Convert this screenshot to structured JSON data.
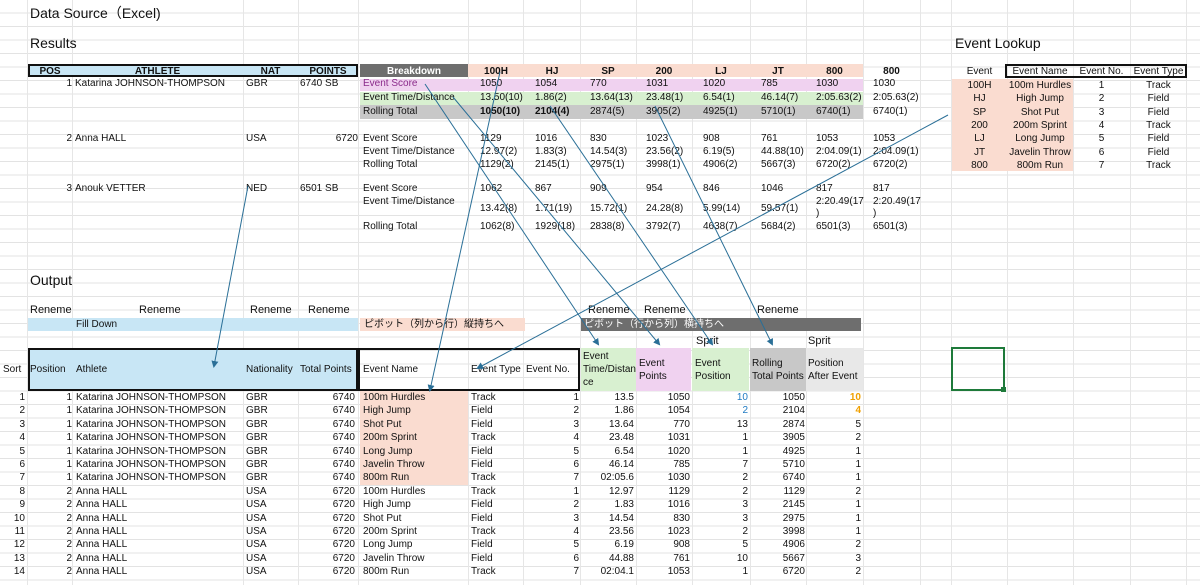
{
  "page": {
    "title": "Data Source（Excel)",
    "results_label": "Results",
    "lookup_label": "Event Lookup",
    "output_label": "Output"
  },
  "results": {
    "headers": [
      "POS",
      "ATHLETE",
      "NAT",
      "POINTS",
      "Breakdown",
      "100H",
      "HJ",
      "SP",
      "200",
      "LJ",
      "JT",
      "800",
      "800"
    ],
    "athletes": [
      {
        "pos": "1",
        "name": "Katarina JOHNSON-THOMPSON",
        "nat": "GBR",
        "points": "6740 SB",
        "rows": [
          {
            "label": "Event Score",
            "vals": [
              "1050",
              "1054",
              "770",
              "1031",
              "1020",
              "785",
              "1030",
              "1030"
            ]
          },
          {
            "label": "Event Time/Distance",
            "vals": [
              "13.50(10)",
              "1.86(2)",
              "13.64(13)",
              "23.48(1)",
              "6.54(1)",
              "46.14(7)",
              "2:05.63(2)",
              "2:05.63(2)"
            ]
          },
          {
            "label": "Rolling Total",
            "vals": [
              "1050(10)",
              "2104(4)",
              "2874(5)",
              "3905(2)",
              "4925(1)",
              "5710(1)",
              "6740(1)",
              "6740(1)"
            ]
          }
        ]
      },
      {
        "pos": "2",
        "name": "Anna HALL",
        "nat": "USA",
        "points": "6720",
        "rows": [
          {
            "label": "Event Score",
            "vals": [
              "1129",
              "1016",
              "830",
              "1023",
              "908",
              "761",
              "1053",
              "1053"
            ]
          },
          {
            "label": "Event Time/Distance",
            "vals": [
              "12.97(2)",
              "1.83(3)",
              "14.54(3)",
              "23.56(2)",
              "6.19(5)",
              "44.88(10)",
              "2:04.09(1)",
              "2:04.09(1)"
            ]
          },
          {
            "label": "Rolling Total",
            "vals": [
              "1129(2)",
              "2145(1)",
              "2975(1)",
              "3998(1)",
              "4906(2)",
              "5667(3)",
              "6720(2)",
              "6720(2)"
            ]
          }
        ]
      },
      {
        "pos": "3",
        "name": "Anouk VETTER",
        "nat": "NED",
        "points": "6501 SB",
        "rows": [
          {
            "label": "Event Score",
            "vals": [
              "1062",
              "867",
              "909",
              "954",
              "846",
              "1046",
              "817",
              "817"
            ]
          },
          {
            "label": "Event Time/Distance",
            "vals": [
              "13.42(8)",
              "1.71(19)",
              "15.72(1)",
              "24.28(8)",
              "5.99(14)",
              "59.57(1)",
              "2:20.49(17",
              "2:20.49(17"
            ],
            "extra": [
              ")",
              ")"
            ]
          },
          {
            "label": "Rolling Total",
            "vals": [
              "1062(8)",
              "1929(18)",
              "2838(8)",
              "3792(7)",
              "4638(7)",
              "5684(2)",
              "6501(3)",
              "6501(3)"
            ]
          }
        ]
      }
    ]
  },
  "lookup": {
    "headers": [
      "Event",
      "Event Name",
      "Event No.",
      "Event Type"
    ],
    "rows": [
      [
        "100H",
        "100m Hurdles",
        "1",
        "Track"
      ],
      [
        "HJ",
        "High Jump",
        "2",
        "Field"
      ],
      [
        "SP",
        "Shot Put",
        "3",
        "Field"
      ],
      [
        "200",
        "200m Sprint",
        "4",
        "Track"
      ],
      [
        "LJ",
        "Long Jump",
        "5",
        "Field"
      ],
      [
        "JT",
        "Javelin Throw",
        "6",
        "Field"
      ],
      [
        "800",
        "800m Run",
        "7",
        "Track"
      ]
    ]
  },
  "output": {
    "rename": "Reneme",
    "fill_down": "Fill Down",
    "pivot_col_to_row": "ピボット（列から行）縦持ちへ",
    "pivot_row_to_col": "ピボット（行から列）横持ちへ",
    "split": "Sprit",
    "sort_label": "Sort",
    "headers": {
      "position": "Position",
      "athlete": "Athlete",
      "nationality": "Nationality",
      "total_points": "Total Points",
      "event_name": "Event Name",
      "event_type": "Event Type",
      "event_no": "Event No.",
      "event_time_1": "Event",
      "event_time_2": "Time/Distan",
      "event_time_3": "ce",
      "event_points_1": "Event",
      "event_points_2": "Points",
      "event_position_1": "Event",
      "event_position_2": "Position",
      "rolling_1": "Rolling",
      "rolling_2": "Total Points",
      "pos_after_1": "Position",
      "pos_after_2": "After Event"
    },
    "rows": [
      [
        "1",
        "1",
        "Katarina JOHNSON-THOMPSON",
        "GBR",
        "6740",
        "100m Hurdles",
        "Track",
        "1",
        "13.5",
        "1050",
        "10",
        "1050",
        "10"
      ],
      [
        "2",
        "1",
        "Katarina JOHNSON-THOMPSON",
        "GBR",
        "6740",
        "High Jump",
        "Field",
        "2",
        "1.86",
        "1054",
        "2",
        "2104",
        "4"
      ],
      [
        "3",
        "1",
        "Katarina JOHNSON-THOMPSON",
        "GBR",
        "6740",
        "Shot Put",
        "Field",
        "3",
        "13.64",
        "770",
        "13",
        "2874",
        "5"
      ],
      [
        "4",
        "1",
        "Katarina JOHNSON-THOMPSON",
        "GBR",
        "6740",
        "200m Sprint",
        "Track",
        "4",
        "23.48",
        "1031",
        "1",
        "3905",
        "2"
      ],
      [
        "5",
        "1",
        "Katarina JOHNSON-THOMPSON",
        "GBR",
        "6740",
        "Long Jump",
        "Field",
        "5",
        "6.54",
        "1020",
        "1",
        "4925",
        "1"
      ],
      [
        "6",
        "1",
        "Katarina JOHNSON-THOMPSON",
        "GBR",
        "6740",
        "Javelin Throw",
        "Field",
        "6",
        "46.14",
        "785",
        "7",
        "5710",
        "1"
      ],
      [
        "7",
        "1",
        "Katarina JOHNSON-THOMPSON",
        "GBR",
        "6740",
        "800m Run",
        "Track",
        "7",
        "02:05.6",
        "1030",
        "2",
        "6740",
        "1"
      ],
      [
        "8",
        "2",
        "Anna HALL",
        "USA",
        "6720",
        "100m Hurdles",
        "Track",
        "1",
        "12.97",
        "1129",
        "2",
        "1129",
        "2"
      ],
      [
        "9",
        "2",
        "Anna HALL",
        "USA",
        "6720",
        "High Jump",
        "Field",
        "2",
        "1.83",
        "1016",
        "3",
        "2145",
        "1"
      ],
      [
        "10",
        "2",
        "Anna HALL",
        "USA",
        "6720",
        "Shot Put",
        "Field",
        "3",
        "14.54",
        "830",
        "3",
        "2975",
        "1"
      ],
      [
        "11",
        "2",
        "Anna HALL",
        "USA",
        "6720",
        "200m Sprint",
        "Track",
        "4",
        "23.56",
        "1023",
        "2",
        "3998",
        "1"
      ],
      [
        "12",
        "2",
        "Anna HALL",
        "USA",
        "6720",
        "Long Jump",
        "Field",
        "5",
        "6.19",
        "908",
        "5",
        "4906",
        "2"
      ],
      [
        "13",
        "2",
        "Anna HALL",
        "USA",
        "6720",
        "Javelin Throw",
        "Field",
        "6",
        "44.88",
        "761",
        "10",
        "5667",
        "3"
      ],
      [
        "14",
        "2",
        "Anna HALL",
        "USA",
        "6720",
        "800m Run",
        "Track",
        "7",
        "02:04.1",
        "1053",
        "1",
        "6720",
        "2"
      ]
    ]
  },
  "colors": {
    "blue_header": "#c8e6f5",
    "peach": "#fadcd0",
    "pink": "#f0d2f0",
    "green": "#d8f0d0",
    "gray": "#c8c8c8",
    "dark_gray": "#6e6e6e",
    "arrow": "#2a6f97",
    "highlight_blue": "#1f7ac2",
    "highlight_orange": "#f0a000",
    "selected_cell": "#1e7a3a"
  }
}
